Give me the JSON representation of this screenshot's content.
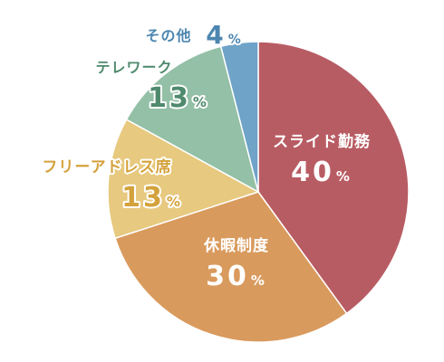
{
  "chart_data": {
    "type": "pie",
    "unit": "%",
    "slices": [
      {
        "label": "スライド勤務",
        "value": 40,
        "color": "#b85c63",
        "text_color": "#ffffff",
        "outline_color": ""
      },
      {
        "label": "休暇制度",
        "value": 30,
        "color": "#d99a5d",
        "text_color": "#ffffff",
        "outline_color": ""
      },
      {
        "label": "フリーアドレス席",
        "value": 13,
        "color": "#e7c97f",
        "text_color": "#d4a23c",
        "outline_color": "#ffffff"
      },
      {
        "label": "テレワーク",
        "value": 13,
        "color": "#93c0a6",
        "text_color": "#4f8a6d",
        "outline_color": "#ffffff"
      },
      {
        "label": "その他",
        "value": 4,
        "color": "#6fa3c8",
        "text_color": "#4c86b0",
        "outline_color": "#ffffff"
      }
    ]
  }
}
